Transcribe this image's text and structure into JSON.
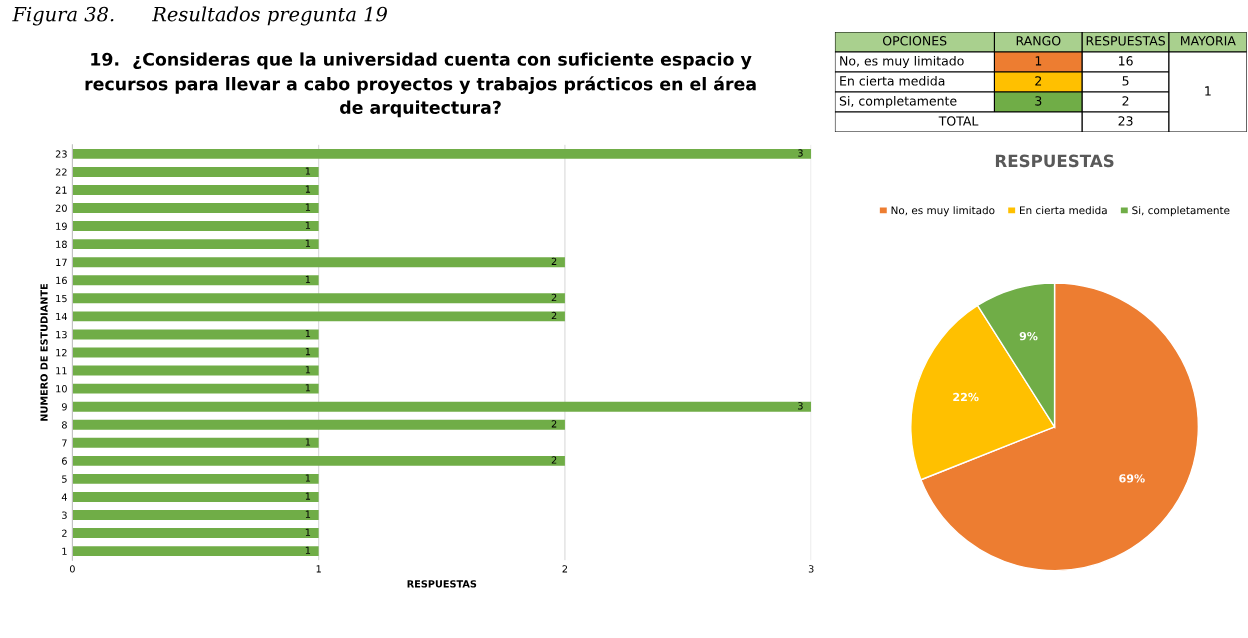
{
  "chart_data": [
    {
      "type": "bar",
      "orientation": "horizontal",
      "title": "19.  ¿Consideras que la universidad cuenta con suficiente espacio y\nrecursos para llevar a cabo proyectos y trabajos prácticos en el área\nde arquitectura?",
      "xlabel": "RESPUESTAS",
      "ylabel": "NUMERO DE ESTUDIANTE",
      "annotations": [
        "Figura 38.      Resultados pregunta 19"
      ],
      "categories": [
        "23",
        "22",
        "21",
        "20",
        "19",
        "18",
        "17",
        "16",
        "15",
        "14",
        "13",
        "12",
        "11",
        "10",
        "9",
        "8",
        "7",
        "6",
        "5",
        "4",
        "3",
        "2",
        "1"
      ],
      "values": [
        3,
        1,
        1,
        1,
        1,
        1,
        2,
        1,
        2,
        2,
        1,
        1,
        1,
        1,
        3,
        2,
        1,
        2,
        1,
        1,
        1,
        1,
        1
      ],
      "color": "#70ad47",
      "xlim": [
        0,
        3
      ],
      "xticks": [
        0,
        1,
        2,
        3
      ],
      "grid": "x",
      "data_labels": true,
      "legend": false
    },
    {
      "type": "other",
      "annotations": [
        "OPCIONES",
        "RANGO",
        "RESPUESTAS",
        "MAYORIA",
        "No, es muy limitado",
        "1",
        "16",
        "En cierta medida",
        "2",
        "5",
        "Si, completamente",
        "3",
        "2",
        "TOTAL",
        "23",
        "1"
      ]
    },
    {
      "type": "pie",
      "title": "RESPUESTAS",
      "categories": [
        "No, es muy limitado",
        "En cierta medida",
        "Si, completamente"
      ],
      "values": [
        69,
        22,
        9
      ],
      "value_labels": [
        "69%",
        "22%",
        "9%"
      ],
      "colors": [
        "#ed7d31",
        "#ffc000",
        "#70ad47"
      ],
      "legend": "top"
    }
  ]
}
